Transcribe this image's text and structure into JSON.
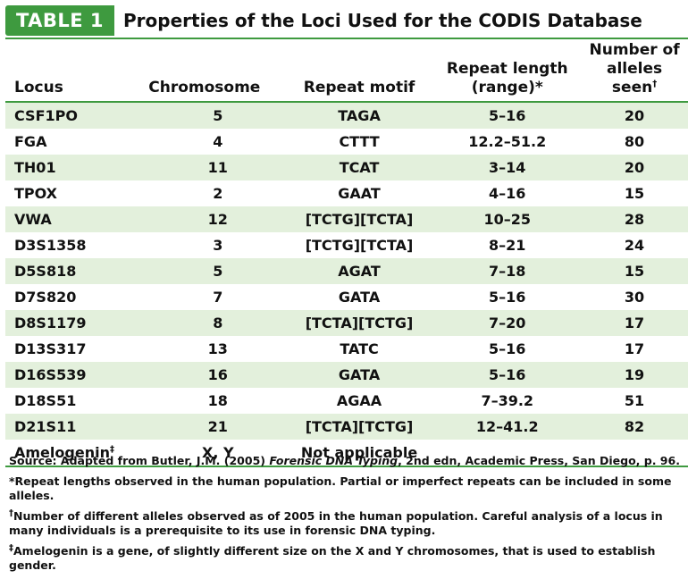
{
  "badge": "TABLE 1",
  "title": "Properties of the Loci Used for the CODIS Database",
  "headers": {
    "locus": "Locus",
    "chromosome": "Chromosome",
    "motif": "Repeat motif",
    "range_line1": "Repeat length",
    "range_line2": "(range)*",
    "alleles_line1": "Number of",
    "alleles_line2": "alleles seen",
    "alleles_mark": "†"
  },
  "rows": [
    {
      "locus": "CSF1PO",
      "chromosome": "5",
      "motif": "TAGA",
      "range": "5–16",
      "alleles": "20"
    },
    {
      "locus": "FGA",
      "chromosome": "4",
      "motif": "CTTT",
      "range": "12.2–51.2",
      "alleles": "80"
    },
    {
      "locus": "TH01",
      "chromosome": "11",
      "motif": "TCAT",
      "range": "3–14",
      "alleles": "20"
    },
    {
      "locus": "TPOX",
      "chromosome": "2",
      "motif": "GAAT",
      "range": "4–16",
      "alleles": "15"
    },
    {
      "locus": "VWA",
      "chromosome": "12",
      "motif": "[TCTG][TCTA]",
      "range": "10–25",
      "alleles": "28"
    },
    {
      "locus": "D3S1358",
      "chromosome": "3",
      "motif": "[TCTG][TCTA]",
      "range": "8–21",
      "alleles": "24"
    },
    {
      "locus": "D5S818",
      "chromosome": "5",
      "motif": "AGAT",
      "range": "7–18",
      "alleles": "15"
    },
    {
      "locus": "D7S820",
      "chromosome": "7",
      "motif": "GATA",
      "range": "5–16",
      "alleles": "30"
    },
    {
      "locus": "D8S1179",
      "chromosome": "8",
      "motif": "[TCTA][TCTG]",
      "range": "7–20",
      "alleles": "17"
    },
    {
      "locus": "D13S317",
      "chromosome": "13",
      "motif": "TATC",
      "range": "5–16",
      "alleles": "17"
    },
    {
      "locus": "D16S539",
      "chromosome": "16",
      "motif": "GATA",
      "range": "5–16",
      "alleles": "19"
    },
    {
      "locus": "D18S51",
      "chromosome": "18",
      "motif": "AGAA",
      "range": "7–39.2",
      "alleles": "51"
    },
    {
      "locus": "D21S11",
      "chromosome": "21",
      "motif": "[TCTA][TCTG]",
      "range": "12–41.2",
      "alleles": "82"
    }
  ],
  "last_row": {
    "locus": "Amelogenin",
    "mark": "‡",
    "chromosome": "X, Y",
    "motif": "Not applicable",
    "range": "",
    "alleles": ""
  },
  "notes": {
    "source_label": "Source:",
    "source_pre": "Adapted from Butler, J.M. (2005)",
    "source_italic": "Forensic DNA Typing",
    "source_post": ", 2nd edn, Academic Press, San Diego, p. 96.",
    "note1": "*Repeat lengths observed in the human population. Partial or imperfect repeats can be included in some alleles.",
    "note2_mark": "†",
    "note2": "Number of different alleles observed as of 2005 in the human population. Careful analysis of a locus in many individuals is a prerequisite to its use in forensic DNA typing.",
    "note3_mark": "‡",
    "note3": "Amelogenin is a gene, of slightly different size on the X and Y chromosomes, that is used to establish gender."
  },
  "colors": {
    "accent": "#3e9a3f",
    "stripe": "#e3f0dc"
  }
}
